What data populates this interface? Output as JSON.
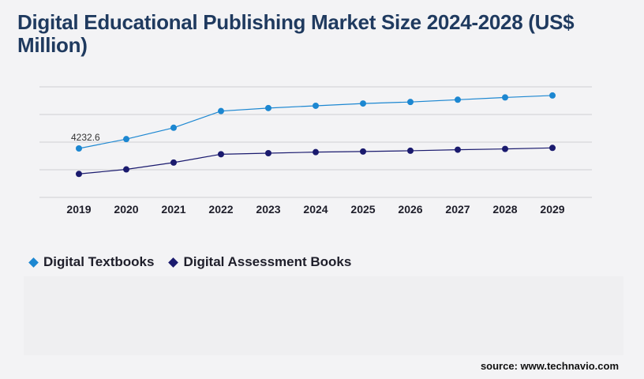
{
  "chart_data": {
    "type": "line",
    "title": "Digital Educational Publishing Market Size 2024-2028 (US$ Million)",
    "categories": [
      "2019",
      "2020",
      "2021",
      "2022",
      "2023",
      "2024",
      "2025",
      "2026",
      "2027",
      "2028",
      "2029"
    ],
    "series": [
      {
        "name": "Digital Textbooks",
        "color": "#1c87d1",
        "values": [
          4232.6,
          4850,
          5600,
          6700,
          6900,
          7050,
          7200,
          7300,
          7450,
          7600,
          7730
        ]
      },
      {
        "name": "Digital Assessment Books",
        "color": "#1a1a6e",
        "values": [
          2550,
          2850,
          3300,
          3850,
          3920,
          3990,
          4030,
          4080,
          4150,
          4200,
          4270
        ]
      }
    ],
    "annotations": [
      {
        "series": 0,
        "index": 0,
        "label": "4232.6"
      }
    ],
    "ylim": [
      1000,
      8300
    ],
    "grid": true,
    "legend": "bottom-left"
  },
  "source": "source: www.technavio.com"
}
